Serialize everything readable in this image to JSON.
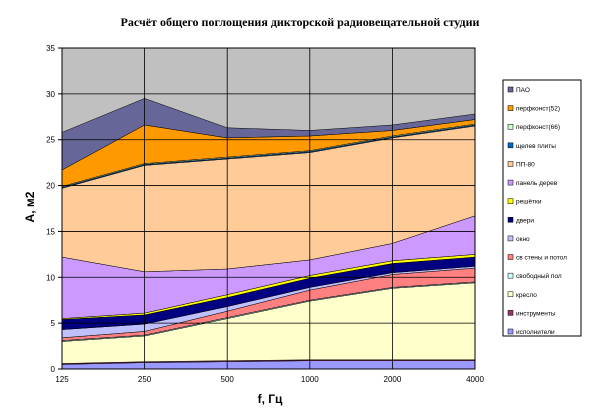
{
  "chart_data": {
    "type": "area",
    "title": "Расчёт общего поглощения дикторской радиовещательной студии",
    "xlabel": "f, Гц",
    "ylabel": "A, м2",
    "ylim": [
      0,
      35
    ],
    "yticks": [
      0,
      5,
      10,
      15,
      20,
      25,
      30,
      35
    ],
    "categories": [
      "125",
      "250",
      "500",
      "1000",
      "2000",
      "4000"
    ],
    "stacked": true,
    "grid": true,
    "legend_position": "right",
    "series": [
      {
        "name": "исполнители",
        "color": "#9999ff",
        "values": [
          0.5,
          0.7,
          0.8,
          0.9,
          0.9,
          0.9
        ]
      },
      {
        "name": "инструменты",
        "color": "#993366",
        "values": [
          0.1,
          0.1,
          0.1,
          0.1,
          0.1,
          0.1
        ]
      },
      {
        "name": "кресло",
        "color": "#ffffcc",
        "values": [
          2.4,
          2.8,
          4.6,
          6.4,
          7.8,
          8.4
        ]
      },
      {
        "name": "свободный пол",
        "color": "#ccffff",
        "values": [
          0.1,
          0.1,
          0.1,
          0.1,
          0.1,
          0.1
        ]
      },
      {
        "name": "св стены и потол",
        "color": "#ff8080",
        "values": [
          0.3,
          0.4,
          0.7,
          1.1,
          1.4,
          1.5
        ]
      },
      {
        "name": "окно",
        "color": "#c0c0ff",
        "values": [
          0.9,
          0.8,
          0.5,
          0.3,
          0.2,
          0.2
        ]
      },
      {
        "name": "двери",
        "color": "#000080",
        "values": [
          1.1,
          1.0,
          1.0,
          1.0,
          1.0,
          1.0
        ]
      },
      {
        "name": "решётки",
        "color": "#ffff00",
        "values": [
          0.1,
          0.2,
          0.3,
          0.3,
          0.3,
          0.3
        ]
      },
      {
        "name": "панель дерев",
        "color": "#cc99ff",
        "values": [
          6.7,
          4.5,
          2.8,
          1.7,
          1.9,
          4.2
        ]
      },
      {
        "name": "ПП-80",
        "color": "#ffcc99",
        "values": [
          7.5,
          11.6,
          12.0,
          11.7,
          11.5,
          9.8
        ]
      },
      {
        "name": "щелев плиты",
        "color": "#0066cc",
        "values": [
          0.1,
          0.1,
          0.1,
          0.1,
          0.1,
          0.1
        ]
      },
      {
        "name": "перфконст(66)",
        "color": "#ccffcc",
        "values": [
          0.1,
          0.1,
          0.1,
          0.1,
          0.1,
          0.1
        ]
      },
      {
        "name": "перфконст(52)",
        "color": "#ff9900",
        "values": [
          1.8,
          4.2,
          2.1,
          1.6,
          0.6,
          0.5
        ]
      },
      {
        "name": "ПАО",
        "color": "#666699",
        "values": [
          4.1,
          2.9,
          1.1,
          0.6,
          0.6,
          0.6
        ]
      }
    ]
  }
}
